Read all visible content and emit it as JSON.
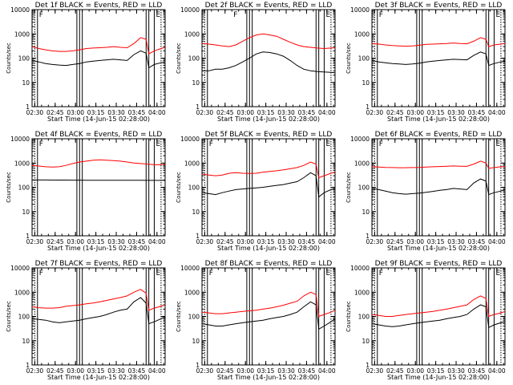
{
  "x_ticks": [
    "02:30",
    "02:45",
    "03:00",
    "03:15",
    "03:30",
    "03:45",
    "04:00"
  ],
  "y_ticks": [
    "1",
    "10",
    "100",
    "1000",
    "10000"
  ],
  "x_label": "Start Time (14-Jun-15 02:28:00)",
  "y_label": "Counts/sec",
  "colors": {
    "events": "#000000",
    "lld": "#ff0000",
    "axes": "#000000"
  },
  "chart_data": [
    {
      "type": "line",
      "title": "Det 1f BLACK = Events, RED = LLD",
      "flags": [
        {
          "label": "F",
          "at_min": 4
        },
        {
          "label": "E",
          "at_min": 90
        }
      ],
      "xlim_min": [
        0,
        98
      ],
      "ylim": [
        1,
        10000
      ],
      "yscale": "log",
      "x_min": [
        0,
        5,
        10,
        15,
        20,
        25,
        30,
        35,
        40,
        45,
        50,
        55,
        60,
        65,
        70,
        75,
        80,
        84,
        86,
        90,
        95,
        98
      ],
      "series": [
        {
          "name": "Events",
          "color": "#000000",
          "values": [
            80,
            70,
            60,
            55,
            52,
            50,
            55,
            60,
            70,
            75,
            80,
            85,
            90,
            85,
            80,
            140,
            200,
            160,
            40,
            55,
            65,
            70
          ]
        },
        {
          "name": "LLD",
          "color": "#ff0000",
          "values": [
            300,
            250,
            220,
            200,
            190,
            190,
            200,
            220,
            250,
            260,
            270,
            280,
            300,
            280,
            270,
            400,
            700,
            600,
            150,
            200,
            250,
            280
          ]
        }
      ]
    },
    {
      "type": "line",
      "title": "Det 2f BLACK = Events, RED = LLD",
      "flags": [
        {
          "label": "F",
          "at_min": 22
        },
        {
          "label": "E",
          "at_min": 90
        }
      ],
      "xlim_min": [
        0,
        98
      ],
      "ylim": [
        1,
        10000
      ],
      "yscale": "log",
      "x_min": [
        0,
        5,
        10,
        15,
        20,
        25,
        30,
        35,
        40,
        45,
        50,
        55,
        60,
        65,
        70,
        75,
        80,
        85,
        90,
        95,
        98
      ],
      "series": [
        {
          "name": "Events",
          "color": "#000000",
          "values": [
            30,
            30,
            35,
            35,
            40,
            50,
            70,
            100,
            150,
            180,
            170,
            150,
            120,
            80,
            50,
            35,
            30,
            28,
            27,
            26,
            25
          ]
        },
        {
          "name": "LLD",
          "color": "#ff0000",
          "values": [
            400,
            380,
            350,
            320,
            300,
            350,
            500,
            700,
            900,
            1000,
            900,
            800,
            600,
            450,
            350,
            300,
            280,
            260,
            250,
            260,
            270
          ]
        }
      ]
    },
    {
      "type": "line",
      "title": "Det 3f BLACK = Events, RED = LLD",
      "flags": [
        {
          "label": "F",
          "at_min": 4
        },
        {
          "label": "E",
          "at_min": 90
        }
      ],
      "xlim_min": [
        0,
        98
      ],
      "ylim": [
        1,
        10000
      ],
      "yscale": "log",
      "x_min": [
        0,
        5,
        10,
        15,
        20,
        25,
        30,
        35,
        40,
        45,
        50,
        55,
        60,
        65,
        70,
        75,
        80,
        84,
        86,
        90,
        95,
        98
      ],
      "series": [
        {
          "name": "Events",
          "color": "#000000",
          "values": [
            80,
            70,
            65,
            60,
            58,
            55,
            58,
            62,
            70,
            75,
            80,
            85,
            90,
            88,
            85,
            130,
            180,
            150,
            50,
            60,
            70,
            75
          ]
        },
        {
          "name": "LLD",
          "color": "#ff0000",
          "values": [
            400,
            380,
            350,
            330,
            320,
            310,
            320,
            340,
            370,
            380,
            390,
            400,
            420,
            400,
            390,
            500,
            700,
            600,
            300,
            350,
            380,
            400
          ]
        }
      ]
    },
    {
      "type": "line",
      "title": "Det 4f BLACK = Events, RED = LLD",
      "flags": [
        {
          "label": "F",
          "at_min": 4
        },
        {
          "label": "E",
          "at_min": 90
        }
      ],
      "xlim_min": [
        0,
        98
      ],
      "ylim": [
        1,
        10000
      ],
      "yscale": "log",
      "x_min": [
        0,
        5,
        10,
        15,
        20,
        25,
        30,
        35,
        40,
        45,
        50,
        55,
        60,
        65,
        70,
        75,
        80,
        85,
        90,
        95,
        98
      ],
      "series": [
        {
          "name": "Events",
          "color": "#000000",
          "values": [
            200,
            200,
            200,
            198,
            198,
            198,
            197,
            197,
            196,
            196,
            195,
            195,
            195,
            195,
            194,
            194,
            194,
            193,
            193,
            193,
            192
          ]
        },
        {
          "name": "LLD",
          "color": "#ff0000",
          "values": [
            800,
            750,
            700,
            680,
            700,
            800,
            950,
            1100,
            1200,
            1300,
            1350,
            1300,
            1250,
            1200,
            1100,
            1000,
            950,
            900,
            850,
            850,
            900
          ]
        }
      ]
    },
    {
      "type": "line",
      "title": "Det 5f BLACK = Events, RED = LLD",
      "flags": [
        {
          "label": "F",
          "at_min": 4
        },
        {
          "label": "E",
          "at_min": 90
        }
      ],
      "xlim_min": [
        0,
        98
      ],
      "ylim": [
        1,
        10000
      ],
      "yscale": "log",
      "x_min": [
        0,
        5,
        10,
        15,
        20,
        25,
        30,
        35,
        40,
        45,
        50,
        55,
        60,
        65,
        70,
        75,
        80,
        84,
        86,
        90,
        95,
        98
      ],
      "series": [
        {
          "name": "Events",
          "color": "#000000",
          "values": [
            60,
            55,
            50,
            60,
            70,
            80,
            85,
            90,
            95,
            100,
            110,
            120,
            130,
            150,
            170,
            250,
            400,
            300,
            40,
            60,
            80,
            90
          ]
        },
        {
          "name": "LLD",
          "color": "#ff0000",
          "values": [
            350,
            320,
            300,
            320,
            380,
            400,
            380,
            370,
            380,
            420,
            450,
            480,
            520,
            580,
            650,
            800,
            1100,
            900,
            250,
            300,
            380,
            420
          ]
        }
      ]
    },
    {
      "type": "line",
      "title": "Det 6f BLACK = Events, RED = LLD",
      "flags": [
        {
          "label": "F",
          "at_min": 4
        },
        {
          "label": "E",
          "at_min": 90
        }
      ],
      "xlim_min": [
        0,
        98
      ],
      "ylim": [
        1,
        10000
      ],
      "yscale": "log",
      "x_min": [
        0,
        5,
        10,
        15,
        20,
        25,
        30,
        35,
        40,
        45,
        50,
        55,
        60,
        65,
        70,
        75,
        80,
        84,
        86,
        90,
        95,
        98
      ],
      "series": [
        {
          "name": "Events",
          "color": "#000000",
          "values": [
            90,
            80,
            70,
            60,
            55,
            52,
            55,
            58,
            62,
            68,
            75,
            80,
            90,
            85,
            80,
            150,
            220,
            180,
            50,
            60,
            70,
            80
          ]
        },
        {
          "name": "LLD",
          "color": "#ff0000",
          "values": [
            700,
            680,
            660,
            650,
            640,
            640,
            650,
            660,
            680,
            700,
            720,
            740,
            760,
            740,
            730,
            900,
            1200,
            1000,
            600,
            650,
            700,
            720
          ]
        }
      ]
    },
    {
      "type": "line",
      "title": "Det 7f BLACK = Events, RED = LLD",
      "flags": [
        {
          "label": "F",
          "at_min": 4
        },
        {
          "label": "E",
          "at_min": 90
        }
      ],
      "xlim_min": [
        0,
        98
      ],
      "ylim": [
        1,
        10000
      ],
      "yscale": "log",
      "x_min": [
        0,
        5,
        10,
        15,
        20,
        25,
        30,
        35,
        40,
        45,
        50,
        55,
        60,
        65,
        70,
        75,
        80,
        84,
        86,
        90,
        95,
        98
      ],
      "series": [
        {
          "name": "Events",
          "color": "#000000",
          "values": [
            80,
            75,
            70,
            60,
            55,
            60,
            65,
            70,
            80,
            90,
            100,
            120,
            150,
            180,
            200,
            400,
            600,
            350,
            50,
            60,
            80,
            100
          ]
        },
        {
          "name": "LLD",
          "color": "#ff0000",
          "values": [
            250,
            230,
            220,
            220,
            230,
            260,
            280,
            300,
            330,
            360,
            400,
            460,
            520,
            600,
            700,
            1000,
            1300,
            900,
            180,
            220,
            260,
            300
          ]
        }
      ]
    },
    {
      "type": "line",
      "title": "Det 8f BLACK = Events, RED = LLD",
      "flags": [
        {
          "label": "F",
          "at_min": 4
        },
        {
          "label": "E",
          "at_min": 90
        }
      ],
      "xlim_min": [
        0,
        98
      ],
      "ylim": [
        1,
        10000
      ],
      "yscale": "log",
      "x_min": [
        0,
        5,
        10,
        15,
        20,
        25,
        30,
        35,
        40,
        45,
        50,
        55,
        60,
        65,
        70,
        75,
        80,
        84,
        86,
        90,
        95,
        98
      ],
      "series": [
        {
          "name": "Events",
          "color": "#000000",
          "values": [
            50,
            45,
            40,
            40,
            45,
            50,
            55,
            60,
            65,
            70,
            80,
            90,
            100,
            120,
            150,
            250,
            400,
            300,
            30,
            40,
            60,
            80
          ]
        },
        {
          "name": "LLD",
          "color": "#ff0000",
          "values": [
            150,
            140,
            130,
            130,
            140,
            150,
            160,
            170,
            180,
            200,
            220,
            250,
            290,
            350,
            420,
            700,
            1000,
            800,
            100,
            120,
            150,
            180
          ]
        }
      ]
    },
    {
      "type": "line",
      "title": "Det 9f BLACK = Events, RED = LLD",
      "flags": [
        {
          "label": "F",
          "at_min": 4
        },
        {
          "label": "E",
          "at_min": 90
        }
      ],
      "xlim_min": [
        0,
        98
      ],
      "ylim": [
        1,
        10000
      ],
      "yscale": "log",
      "x_min": [
        0,
        5,
        10,
        15,
        20,
        25,
        30,
        35,
        40,
        45,
        50,
        55,
        60,
        65,
        70,
        75,
        80,
        84,
        86,
        90,
        95,
        98
      ],
      "series": [
        {
          "name": "Events",
          "color": "#000000",
          "values": [
            50,
            45,
            40,
            38,
            40,
            45,
            50,
            55,
            60,
            65,
            70,
            80,
            90,
            100,
            120,
            200,
            300,
            250,
            35,
            45,
            55,
            60
          ]
        },
        {
          "name": "LLD",
          "color": "#ff0000",
          "values": [
            120,
            110,
            100,
            100,
            110,
            120,
            130,
            140,
            150,
            160,
            180,
            200,
            230,
            260,
            300,
            500,
            700,
            550,
            100,
            120,
            140,
            160
          ]
        }
      ]
    }
  ]
}
